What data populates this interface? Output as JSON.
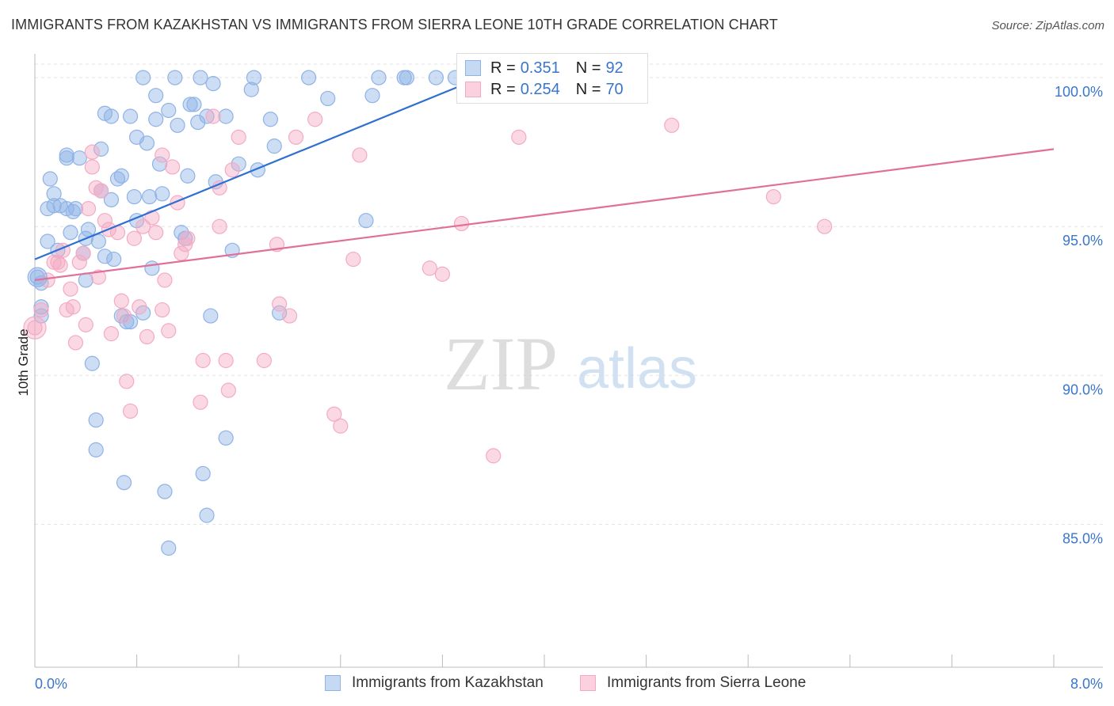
{
  "title": "IMMIGRANTS FROM KAZAKHSTAN VS IMMIGRANTS FROM SIERRA LEONE 10TH GRADE CORRELATION CHART",
  "source": "Source: ZipAtlas.com",
  "watermark": {
    "zip": "ZIP",
    "atlas": "atlas"
  },
  "legend_top": [
    {
      "r_label": "R =",
      "r_value": "0.351",
      "n_label": "N =",
      "n_value": "92"
    },
    {
      "r_label": "R =",
      "r_value": "0.254",
      "n_label": "N =",
      "n_value": "70"
    }
  ],
  "chart_data": {
    "type": "scatter",
    "title": "IMMIGRANTS FROM KAZAKHSTAN VS IMMIGRANTS FROM SIERRA LEONE 10TH GRADE CORRELATION CHART",
    "xlabel": "",
    "ylabel": "10th Grade",
    "xlim": [
      0,
      8
    ],
    "ylim": [
      80.2,
      100.8
    ],
    "x_tick_labels": [
      "0.0%",
      "8.0%"
    ],
    "y_ticks": [
      85,
      90,
      95,
      100
    ],
    "y_tick_labels": [
      "85.0%",
      "90.0%",
      "95.0%",
      "100.0%"
    ],
    "grid": "horizontal dashed",
    "legend_position": "top-center and bottom",
    "series": [
      {
        "name": "Immigrants from Kazakhstan",
        "color": "#8fb3e6",
        "line_color": "#2e6fd1",
        "trend": {
          "x": [
            0.0,
            3.5
          ],
          "y": [
            93.9,
            100.0
          ]
        },
        "points": [
          [
            0.02,
            93.3
          ],
          [
            0.05,
            92.3
          ],
          [
            0.05,
            92.0
          ],
          [
            0.05,
            93.1
          ],
          [
            0.1,
            95.6
          ],
          [
            0.1,
            94.5
          ],
          [
            0.12,
            96.6
          ],
          [
            0.15,
            95.7
          ],
          [
            0.15,
            96.1
          ],
          [
            0.18,
            94.2
          ],
          [
            0.2,
            95.7
          ],
          [
            0.25,
            97.4
          ],
          [
            0.25,
            95.6
          ],
          [
            0.25,
            97.3
          ],
          [
            0.28,
            94.8
          ],
          [
            0.3,
            95.5
          ],
          [
            0.32,
            95.6
          ],
          [
            0.35,
            97.3
          ],
          [
            0.38,
            94.1
          ],
          [
            0.4,
            94.6
          ],
          [
            0.4,
            93.2
          ],
          [
            0.42,
            94.9
          ],
          [
            0.45,
            90.4
          ],
          [
            0.48,
            88.5
          ],
          [
            0.48,
            87.5
          ],
          [
            0.5,
            94.5
          ],
          [
            0.52,
            97.6
          ],
          [
            0.52,
            96.2
          ],
          [
            0.55,
            98.8
          ],
          [
            0.55,
            94.0
          ],
          [
            0.6,
            98.7
          ],
          [
            0.6,
            95.9
          ],
          [
            0.62,
            93.9
          ],
          [
            0.65,
            96.6
          ],
          [
            0.68,
            92.0
          ],
          [
            0.68,
            96.7
          ],
          [
            0.7,
            86.4
          ],
          [
            0.72,
            91.8
          ],
          [
            0.75,
            98.7
          ],
          [
            0.75,
            91.8
          ],
          [
            0.78,
            96.0
          ],
          [
            0.8,
            95.2
          ],
          [
            0.8,
            98.0
          ],
          [
            0.85,
            92.1
          ],
          [
            0.85,
            100.0
          ],
          [
            0.88,
            97.8
          ],
          [
            0.9,
            96.0
          ],
          [
            0.92,
            93.6
          ],
          [
            0.95,
            99.4
          ],
          [
            0.95,
            98.6
          ],
          [
            0.98,
            97.1
          ],
          [
            1.0,
            96.1
          ],
          [
            1.02,
            86.1
          ],
          [
            1.05,
            84.2
          ],
          [
            1.05,
            98.9
          ],
          [
            1.1,
            100.0
          ],
          [
            1.12,
            98.4
          ],
          [
            1.15,
            94.8
          ],
          [
            1.18,
            94.6
          ],
          [
            1.2,
            96.7
          ],
          [
            1.22,
            99.1
          ],
          [
            1.25,
            99.1
          ],
          [
            1.28,
            98.5
          ],
          [
            1.3,
            100.0
          ],
          [
            1.32,
            86.7
          ],
          [
            1.35,
            85.3
          ],
          [
            1.35,
            98.7
          ],
          [
            1.38,
            92.0
          ],
          [
            1.4,
            99.8
          ],
          [
            1.42,
            96.5
          ],
          [
            1.5,
            98.7
          ],
          [
            1.5,
            87.9
          ],
          [
            1.55,
            94.2
          ],
          [
            1.6,
            97.1
          ],
          [
            1.7,
            99.6
          ],
          [
            1.72,
            100.0
          ],
          [
            1.75,
            96.9
          ],
          [
            1.85,
            98.6
          ],
          [
            1.88,
            97.7
          ],
          [
            1.92,
            92.1
          ],
          [
            2.15,
            100.0
          ],
          [
            2.3,
            99.3
          ],
          [
            2.6,
            95.2
          ],
          [
            2.65,
            99.4
          ],
          [
            2.7,
            100.0
          ],
          [
            2.9,
            100.0
          ],
          [
            2.92,
            100.0
          ],
          [
            3.15,
            100.0
          ],
          [
            3.3,
            100.0
          ],
          [
            3.4,
            100.0
          ],
          [
            3.45,
            100.0
          ],
          [
            3.5,
            100.0
          ]
        ]
      },
      {
        "name": "Immigrants from Sierra Leone",
        "color": "#f4aac4",
        "line_color": "#e0709a",
        "trend": {
          "x": [
            0.0,
            8.0
          ],
          "y": [
            93.2,
            97.6
          ]
        },
        "points": [
          [
            0.0,
            91.6
          ],
          [
            0.05,
            92.2
          ],
          [
            0.1,
            93.2
          ],
          [
            0.15,
            93.8
          ],
          [
            0.18,
            93.8
          ],
          [
            0.2,
            93.7
          ],
          [
            0.22,
            94.2
          ],
          [
            0.25,
            92.2
          ],
          [
            0.28,
            92.9
          ],
          [
            0.3,
            92.3
          ],
          [
            0.32,
            91.1
          ],
          [
            0.35,
            93.8
          ],
          [
            0.38,
            94.1
          ],
          [
            0.4,
            91.7
          ],
          [
            0.42,
            95.6
          ],
          [
            0.45,
            97.5
          ],
          [
            0.45,
            97.0
          ],
          [
            0.48,
            96.3
          ],
          [
            0.5,
            93.3
          ],
          [
            0.52,
            96.2
          ],
          [
            0.55,
            95.2
          ],
          [
            0.58,
            94.9
          ],
          [
            0.6,
            91.4
          ],
          [
            0.65,
            94.8
          ],
          [
            0.68,
            92.5
          ],
          [
            0.7,
            92.0
          ],
          [
            0.72,
            89.8
          ],
          [
            0.75,
            88.8
          ],
          [
            0.78,
            94.6
          ],
          [
            0.82,
            92.3
          ],
          [
            0.85,
            95.0
          ],
          [
            0.88,
            91.3
          ],
          [
            0.92,
            95.3
          ],
          [
            0.95,
            94.8
          ],
          [
            1.0,
            97.4
          ],
          [
            1.0,
            92.2
          ],
          [
            1.02,
            93.2
          ],
          [
            1.05,
            91.5
          ],
          [
            1.08,
            97.0
          ],
          [
            1.12,
            95.8
          ],
          [
            1.15,
            94.1
          ],
          [
            1.18,
            94.4
          ],
          [
            1.2,
            94.6
          ],
          [
            1.3,
            89.1
          ],
          [
            1.32,
            90.5
          ],
          [
            1.4,
            98.7
          ],
          [
            1.45,
            96.3
          ],
          [
            1.45,
            95.0
          ],
          [
            1.5,
            90.5
          ],
          [
            1.52,
            89.5
          ],
          [
            1.55,
            96.9
          ],
          [
            1.6,
            98.0
          ],
          [
            1.8,
            90.5
          ],
          [
            1.9,
            94.4
          ],
          [
            1.92,
            92.4
          ],
          [
            2.0,
            92.0
          ],
          [
            2.05,
            98.0
          ],
          [
            2.2,
            98.6
          ],
          [
            2.35,
            88.7
          ],
          [
            2.4,
            88.3
          ],
          [
            2.5,
            93.9
          ],
          [
            2.55,
            97.4
          ],
          [
            3.1,
            93.6
          ],
          [
            3.2,
            93.4
          ],
          [
            3.35,
            95.1
          ],
          [
            3.6,
            87.3
          ],
          [
            3.8,
            98.0
          ],
          [
            5.0,
            98.4
          ],
          [
            5.8,
            96.0
          ],
          [
            6.2,
            95.0
          ]
        ]
      }
    ]
  },
  "legend_bottom": [
    {
      "label": "Immigrants from Kazakhstan",
      "color": "#c5d9f3",
      "border": "#8fb3e6"
    },
    {
      "label": "Immigrants from Sierra Leone",
      "color": "#fbd1e0",
      "border": "#f4aac4"
    }
  ]
}
